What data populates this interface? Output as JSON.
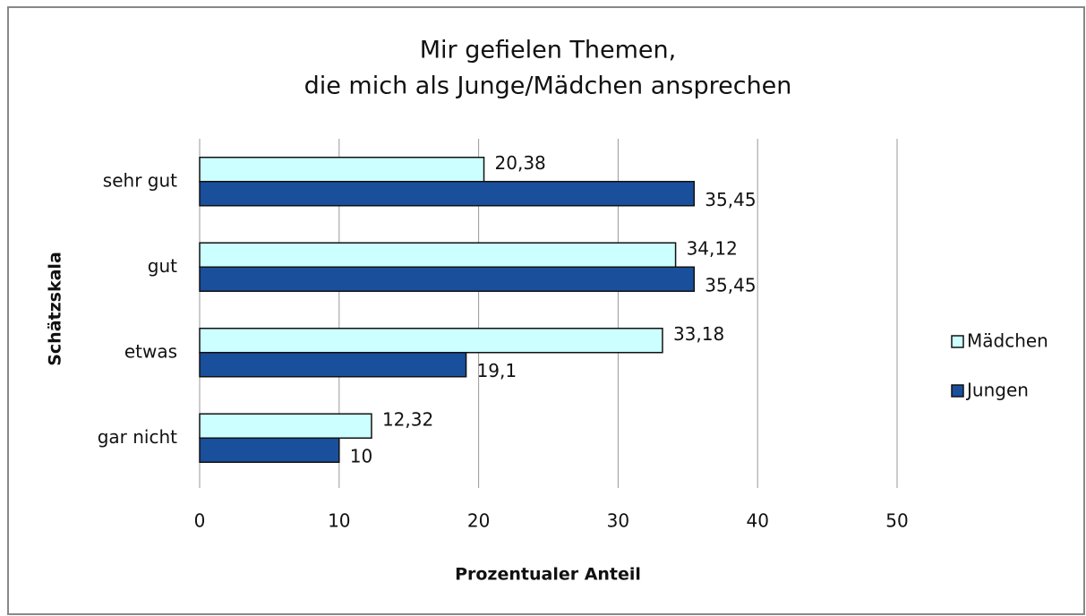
{
  "chart_data": {
    "type": "hbar",
    "title": [
      "Mir gefielen Themen,",
      "die mich als Junge/Mädchen ansprechen"
    ],
    "xlabel": "Prozentualer Anteil",
    "ylabel": "Schätzskala",
    "categories": [
      "sehr gut",
      "gut",
      "etwas",
      "gar nicht"
    ],
    "series": [
      {
        "name": "Mädchen",
        "color": "#ccffff",
        "values": [
          20.38,
          34.12,
          33.18,
          12.32
        ],
        "value_labels": [
          "20,38",
          "34,12",
          "33,18",
          "12,32"
        ]
      },
      {
        "name": "Jungen",
        "color": "#1a4f9c",
        "values": [
          35.45,
          35.45,
          19.1,
          10
        ],
        "value_labels": [
          "35,45",
          "35,45",
          "19,1",
          "10"
        ]
      }
    ],
    "xlim": [
      0,
      50
    ],
    "xticks": [
      0,
      10,
      20,
      30,
      40,
      50
    ],
    "grid": true,
    "legend": "right"
  }
}
